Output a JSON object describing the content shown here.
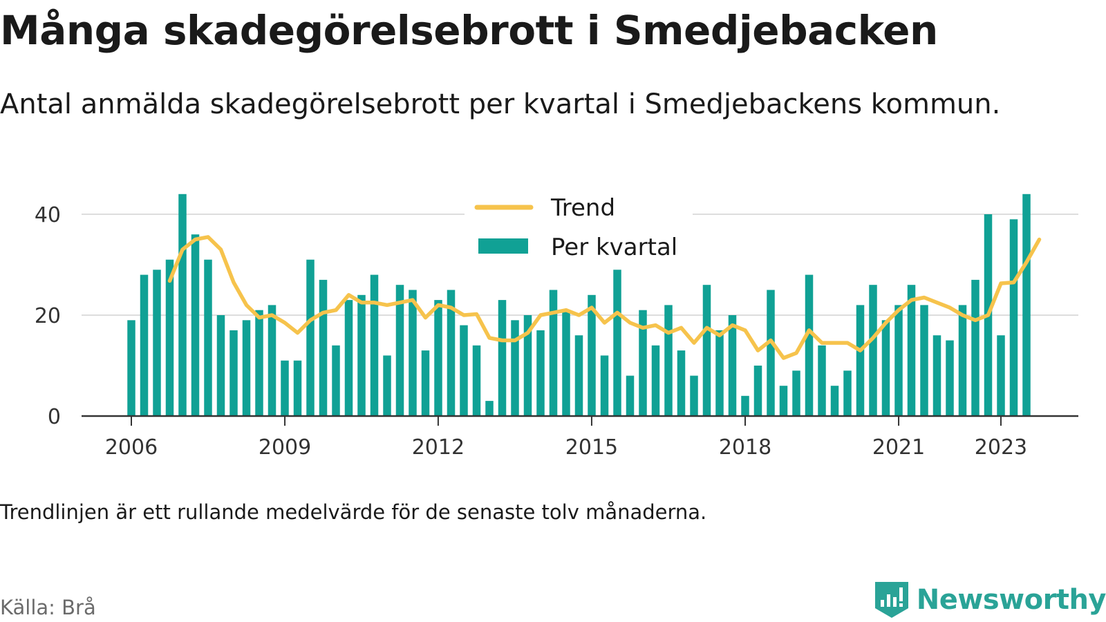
{
  "header": {
    "title": "Många skadegörelsebrott i Smedjebacken",
    "subtitle": "Antal anmälda skadegörelsebrott per kvartal i Smedjebackens kommun."
  },
  "footer": {
    "note": "Trendlinjen är ett rullande medelvärde för de senaste tolv månaderna.",
    "source": "Källa: Brå",
    "brand": "Newsworthy",
    "brand_icon": "bar-chart-logo-icon"
  },
  "colors": {
    "bar": "#10a195",
    "trend": "#f6c34c",
    "grid": "#dddddd",
    "axis": "#333333",
    "brand": "#2aa397"
  },
  "chart_data": {
    "type": "bar",
    "title": "Många skadegörelsebrott i Smedjebacken",
    "subtitle": "Antal anmälda skadegörelsebrott per kvartal i Smedjebackens kommun.",
    "xlabel": "",
    "ylabel": "",
    "ylim": [
      0,
      44
    ],
    "yticks": [
      0,
      20,
      40
    ],
    "x_start": "2006-01-01",
    "x_ticks": [
      {
        "label": "2006",
        "date": "2006-01-01"
      },
      {
        "label": "2009",
        "date": "2009-01-01"
      },
      {
        "label": "2012",
        "date": "2012-01-01"
      },
      {
        "label": "2015",
        "date": "2015-01-01"
      },
      {
        "label": "2018",
        "date": "2018-01-01"
      },
      {
        "label": "2021",
        "date": "2021-01-01"
      },
      {
        "label": "2023",
        "date": "2023-01-01"
      }
    ],
    "grid": true,
    "legend": {
      "position": "top-center",
      "entries": [
        "Trend",
        "Per kvartal"
      ]
    },
    "series": [
      {
        "name": "Per kvartal",
        "type": "bar",
        "values": [
          19,
          28,
          29,
          31,
          44,
          36,
          31,
          20,
          17,
          19,
          21,
          22,
          11,
          11,
          31,
          27,
          14,
          23,
          24,
          28,
          12,
          26,
          25,
          13,
          23,
          25,
          18,
          14,
          3,
          23,
          19,
          20,
          17,
          25,
          21,
          16,
          24,
          12,
          29,
          8,
          21,
          14,
          22,
          13,
          8,
          26,
          17,
          20,
          4,
          10,
          25,
          6,
          9,
          28,
          14,
          6,
          9,
          22,
          26,
          19,
          22,
          26,
          22,
          16,
          15,
          22,
          27,
          40,
          16,
          39,
          44
        ]
      },
      {
        "name": "Trend",
        "type": "line",
        "start_index": 3,
        "values": [
          26.8,
          33.0,
          35.0,
          35.5,
          33.0,
          26.5,
          22.0,
          19.5,
          20.0,
          18.5,
          16.5,
          19.0,
          20.5,
          21.0,
          24.0,
          22.5,
          22.5,
          22.0,
          22.5,
          23.0,
          19.5,
          22.0,
          21.5,
          20.0,
          20.2,
          15.5,
          15.0,
          15.0,
          16.5,
          20.0,
          20.5,
          21.0,
          20.0,
          21.5,
          18.5,
          20.5,
          18.5,
          17.5,
          18.0,
          16.5,
          17.5,
          14.5,
          17.5,
          16.0,
          18.0,
          17.0,
          13.0,
          15.0,
          11.5,
          12.5,
          17.0,
          14.5,
          14.5,
          14.5,
          13.0,
          15.5,
          18.5,
          21.0,
          23.0,
          23.5,
          22.5,
          21.5,
          20.0,
          19.0,
          20.0,
          26.3,
          26.5,
          30.5,
          35.0
        ]
      }
    ]
  }
}
